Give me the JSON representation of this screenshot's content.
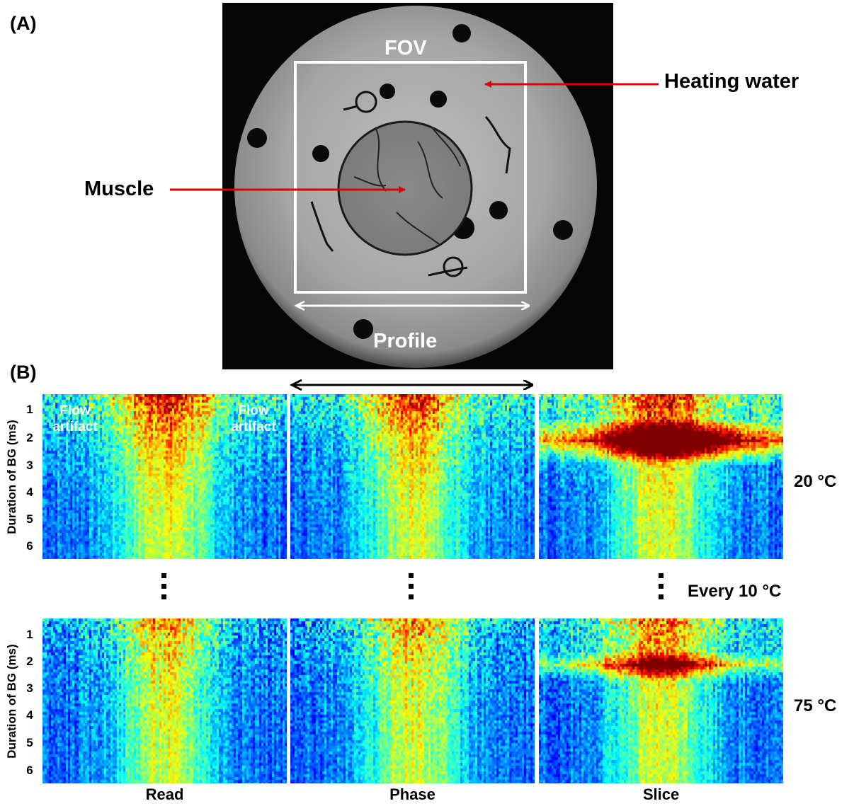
{
  "panel_a": {
    "letter": "(A)",
    "fov_label": "FOV",
    "heating_label": "Heating water",
    "muscle_label": "Muscle",
    "profile_label": "Profile"
  },
  "panel_b": {
    "letter": "(B)",
    "ylabel": "Duration of BG (ms)",
    "yticks": [
      "1",
      "2",
      "3",
      "4",
      "5",
      "6"
    ],
    "columns": [
      "Read",
      "Phase",
      "Slice"
    ],
    "rows": [
      {
        "temperature": "20 °C"
      },
      {
        "temperature": "75 °C"
      }
    ],
    "between_rows": "Every 10 °C",
    "flow_artifact_left": [
      "Flow",
      "artifact"
    ],
    "flow_artifact_right": [
      "Flow",
      "artifact"
    ]
  },
  "colors": {
    "arrow": "#e00000",
    "fov_box": "#ffffff",
    "colormap": "jet"
  }
}
